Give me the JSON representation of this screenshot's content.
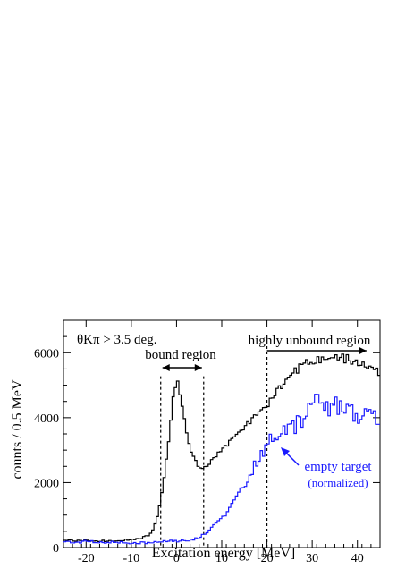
{
  "chart_data": {
    "type": "histogram",
    "xlabel": "Excitation energy [MeV]",
    "ylabel": "counts / 0.5 MeV",
    "xlim": [
      -25,
      45
    ],
    "ylim": [
      0,
      7000
    ],
    "bin_width": 0.5,
    "xticks": [
      -20,
      -10,
      0,
      10,
      20,
      30,
      40
    ],
    "yticks": [
      0,
      2000,
      4000,
      6000
    ],
    "grid": false,
    "annotations": {
      "cut": "θKπ > 3.5 deg.",
      "bound": "bound region",
      "unbound": "highly unbound region",
      "empty": "empty target",
      "normalized": "(normalized)"
    },
    "bound_region": [
      -3.5,
      6
    ],
    "unbound_start": 20,
    "series": [
      {
        "color": "#000000",
        "points": [
          [
            -25,
            230
          ],
          [
            -20,
            210
          ],
          [
            -15,
            200
          ],
          [
            -10,
            230
          ],
          [
            -8,
            280
          ],
          [
            -6,
            380
          ],
          [
            -5,
            600
          ],
          [
            -4,
            1100
          ],
          [
            -3,
            1900
          ],
          [
            -2,
            3000
          ],
          [
            -1,
            4200
          ],
          [
            -0.5,
            4900
          ],
          [
            0,
            5100
          ],
          [
            0.5,
            5000
          ],
          [
            1,
            4600
          ],
          [
            2,
            3700
          ],
          [
            3,
            3000
          ],
          [
            4,
            2700
          ],
          [
            5,
            2450
          ],
          [
            6,
            2450
          ],
          [
            8,
            2700
          ],
          [
            10,
            3050
          ],
          [
            12,
            3300
          ],
          [
            14,
            3550
          ],
          [
            16,
            3850
          ],
          [
            18,
            4100
          ],
          [
            20,
            4400
          ],
          [
            22,
            4750
          ],
          [
            24,
            5100
          ],
          [
            26,
            5400
          ],
          [
            28,
            5600
          ],
          [
            30,
            5750
          ],
          [
            32,
            5800
          ],
          [
            34,
            5850
          ],
          [
            36,
            5850
          ],
          [
            38,
            5800
          ],
          [
            40,
            5750
          ],
          [
            42,
            5650
          ],
          [
            44,
            5450
          ],
          [
            45,
            5300
          ]
        ]
      },
      {
        "color": "#1a1aff",
        "points": [
          [
            -25,
            150
          ],
          [
            -20,
            180
          ],
          [
            -15,
            170
          ],
          [
            -10,
            150
          ],
          [
            -5,
            150
          ],
          [
            0,
            200
          ],
          [
            4,
            250
          ],
          [
            6,
            400
          ],
          [
            8,
            650
          ],
          [
            10,
            900
          ],
          [
            12,
            1250
          ],
          [
            14,
            1700
          ],
          [
            16,
            2200
          ],
          [
            18,
            2700
          ],
          [
            20,
            3200
          ],
          [
            22,
            3400
          ],
          [
            24,
            3550
          ],
          [
            26,
            3700
          ],
          [
            28,
            4000
          ],
          [
            30,
            4400
          ],
          [
            32,
            4600
          ],
          [
            34,
            4300
          ],
          [
            36,
            4400
          ],
          [
            38,
            4200
          ],
          [
            40,
            4100
          ],
          [
            42,
            4050
          ],
          [
            44,
            4000
          ],
          [
            45,
            4000
          ]
        ]
      }
    ]
  }
}
